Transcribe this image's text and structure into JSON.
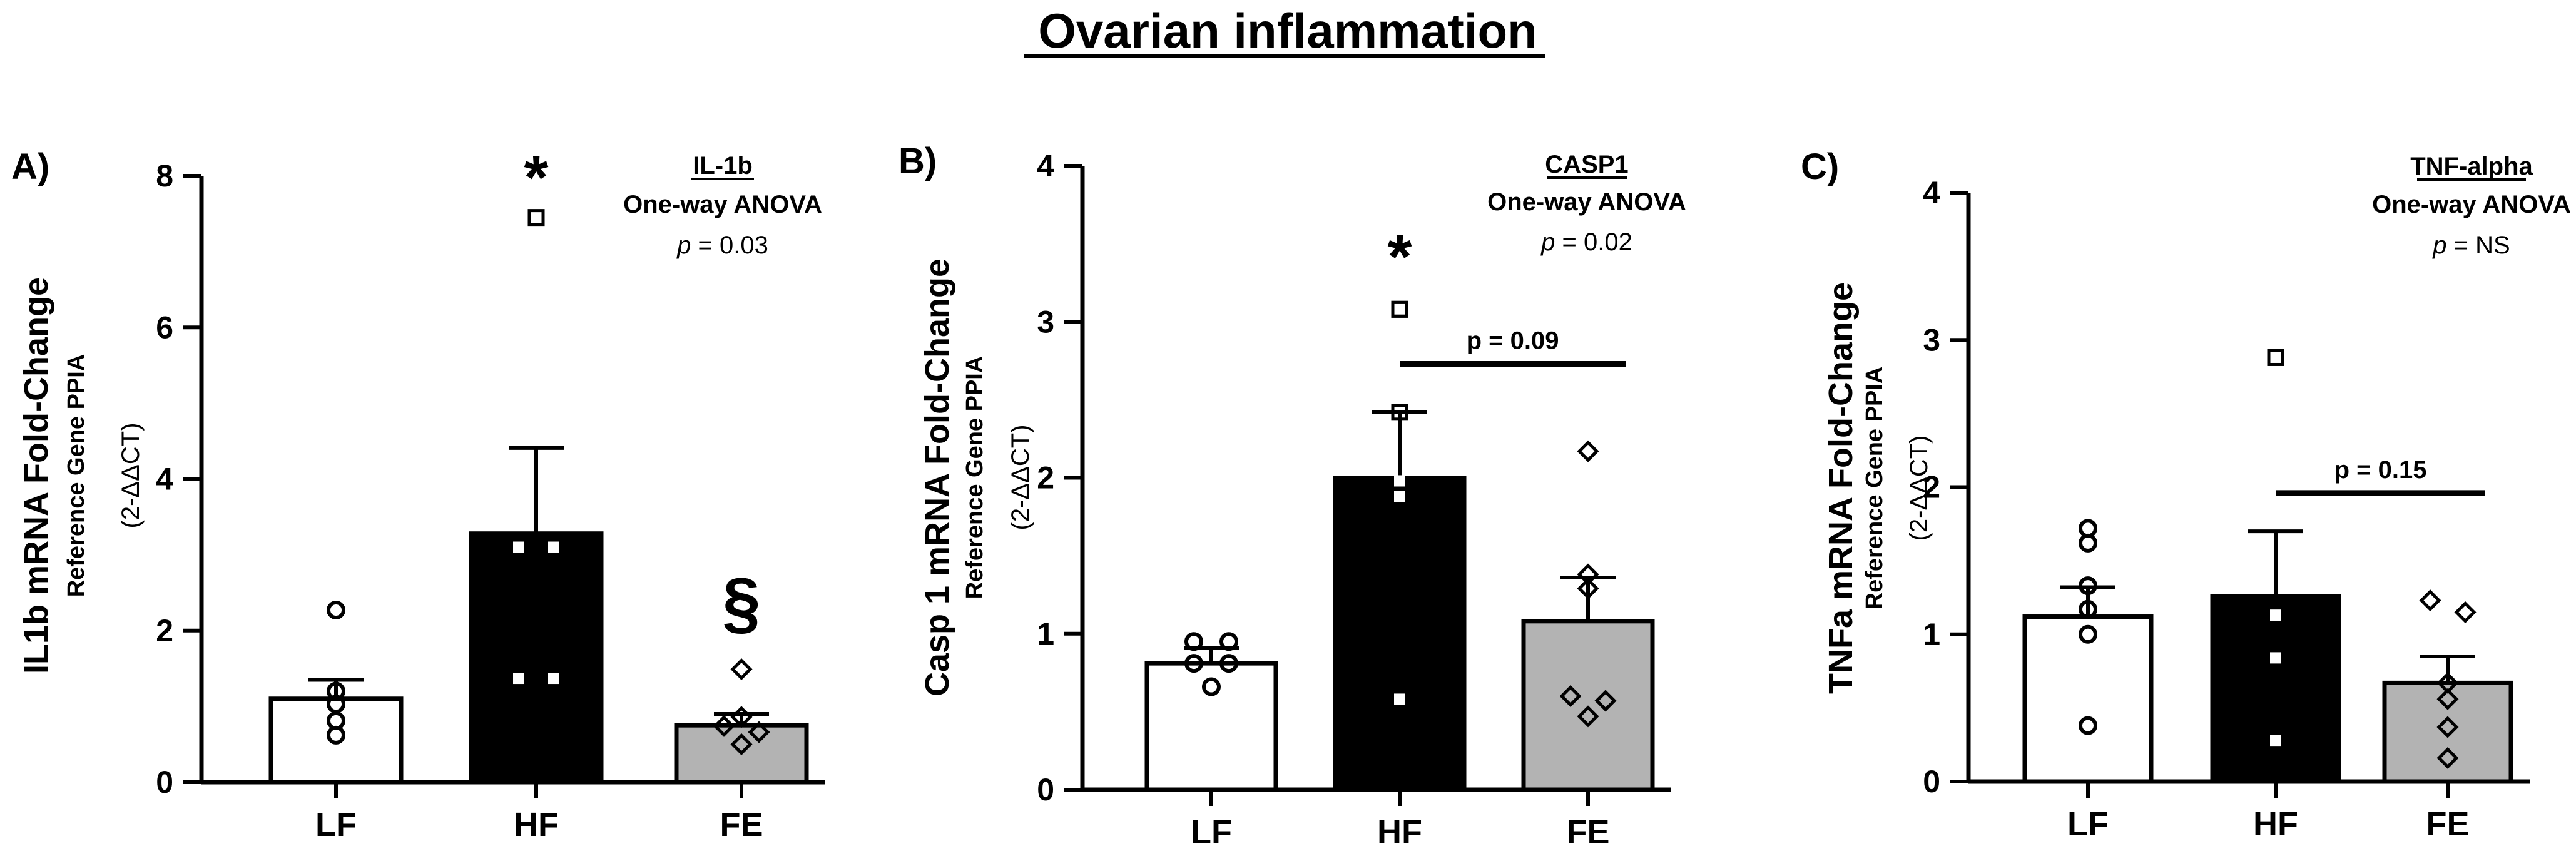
{
  "figure_title": "Ovarian inflammation",
  "colors": {
    "lf": "#ffffff",
    "hf": "#000000",
    "fe": "#b3b3b3",
    "ink": "#000000"
  },
  "chart_data": [
    {
      "panel": "A)",
      "type": "bar",
      "categories": [
        "LF",
        "HF",
        "FE"
      ],
      "values": [
        1.1,
        3.28,
        0.75
      ],
      "sem": [
        0.25,
        1.13,
        0.15
      ],
      "points": [
        [
          2.27,
          1.2,
          1.03,
          0.81,
          0.62
        ],
        [
          3.1,
          3.1,
          1.37,
          1.37
        ],
        [
          1.49,
          0.86,
          0.74,
          0.66,
          0.5
        ]
      ],
      "ylim": [
        0,
        8
      ],
      "yticks": [
        0,
        2,
        4,
        6,
        8
      ],
      "ylabel": "IL1b mRNA Fold-Change",
      "ylabel_ref": "Reference Gene PPIA",
      "ylabel_formula": "(2-ΔΔCT)",
      "legend": {
        "gene": "IL-1b",
        "test": "One-way ANOVA",
        "p_label": "p",
        "p_value": "= 0.03"
      },
      "annotations": [
        {
          "text": "*",
          "category": "HF",
          "y": 8.15
        },
        {
          "text": "□",
          "category": "HF",
          "y": 7.45
        },
        {
          "text": "§",
          "category": "FE",
          "y": 2.35
        }
      ]
    },
    {
      "panel": "B)",
      "type": "bar",
      "categories": [
        "LF",
        "HF",
        "FE"
      ],
      "values": [
        0.81,
        2.0,
        1.08
      ],
      "sem": [
        0.1,
        0.42,
        0.28
      ],
      "points": [
        [
          0.95,
          0.95,
          0.81,
          0.81,
          0.66
        ],
        [
          3.08,
          2.42,
          1.98,
          1.88,
          0.58
        ],
        [
          2.17,
          1.38,
          1.29,
          0.6,
          0.57,
          0.47
        ]
      ],
      "ylim": [
        0,
        4
      ],
      "yticks": [
        0,
        1,
        2,
        3,
        4
      ],
      "ylabel": "Casp 1 mRNA Fold-Change",
      "ylabel_ref": "Reference Gene PPIA",
      "ylabel_formula": "(2-ΔΔCT)",
      "legend": {
        "gene": "CASP1",
        "test": "One-way ANOVA",
        "p_label": "p",
        "p_value": "= 0.02"
      },
      "annotations": [
        {
          "text": "*",
          "category": "HF",
          "y": 3.5
        },
        {
          "text": "□",
          "category": "HF",
          "y": 3.08
        }
      ],
      "comparison": {
        "from": "HF",
        "to": "FE",
        "y": 2.73,
        "label": "p = 0.09"
      }
    },
    {
      "panel": "C)",
      "type": "bar",
      "categories": [
        "LF",
        "HF",
        "FE"
      ],
      "values": [
        1.12,
        1.26,
        0.67
      ],
      "sem": [
        0.2,
        0.44,
        0.18
      ],
      "points": [
        [
          1.72,
          1.62,
          1.33,
          1.17,
          1.0,
          0.38
        ],
        [
          2.88,
          1.13,
          0.84,
          0.28
        ],
        [
          1.23,
          1.15,
          0.67,
          0.56,
          0.37,
          0.16
        ]
      ],
      "ylim": [
        0,
        4
      ],
      "yticks": [
        0,
        1,
        2,
        3,
        4
      ],
      "ylabel": "TNFa mRNA Fold-Change",
      "ylabel_ref": "Reference Gene PPIA",
      "ylabel_formula": "(2-ΔΔCT)",
      "legend": {
        "gene": "TNF-alpha",
        "test": "One-way ANOVA",
        "p_label": "p",
        "p_value": "= NS"
      },
      "annotations": [],
      "comparison": {
        "from": "HF",
        "to": "FE",
        "y": 1.96,
        "label": "p = 0.15"
      }
    }
  ]
}
